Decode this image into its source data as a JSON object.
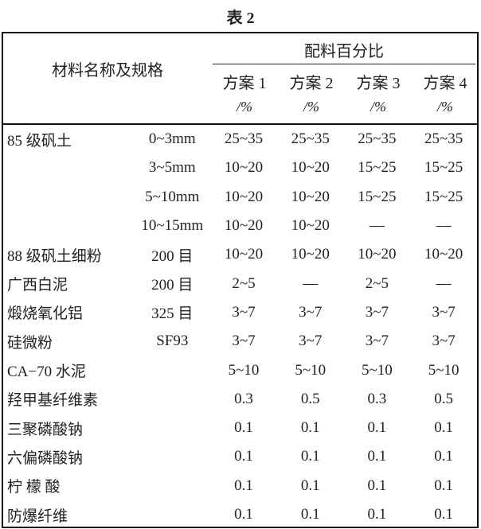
{
  "caption": "表 2",
  "header": {
    "name_spec": "材料名称及规格",
    "group": "配料百分比",
    "plans": [
      "方案 1",
      "方案 2",
      "方案 3",
      "方案 4"
    ],
    "unit": "/%"
  },
  "rows": [
    {
      "name": "85 级矾土",
      "spec": "0~3mm",
      "values": [
        "25~35",
        "25~35",
        "25~35",
        "25~35"
      ]
    },
    {
      "name": "",
      "spec": "3~5mm",
      "values": [
        "10~20",
        "10~20",
        "15~25",
        "15~25"
      ]
    },
    {
      "name": "",
      "spec": "5~10mm",
      "values": [
        "10~20",
        "10~20",
        "15~25",
        "15~25"
      ]
    },
    {
      "name": "",
      "spec": "10~15mm",
      "values": [
        "10~20",
        "10~20",
        "—",
        "—"
      ]
    },
    {
      "name": "88 级矾土细粉",
      "spec": "200 目",
      "values": [
        "10~20",
        "10~20",
        "10~20",
        "10~20"
      ]
    },
    {
      "name": "广西白泥",
      "spec": "200 目",
      "values": [
        "2~5",
        "—",
        "2~5",
        "—"
      ]
    },
    {
      "name": "煅烧氧化铝",
      "spec": "325 目",
      "values": [
        "3~7",
        "3~7",
        "3~7",
        "3~7"
      ]
    },
    {
      "name": "硅微粉",
      "spec": "SF93",
      "values": [
        "3~7",
        "3~7",
        "3~7",
        "3~7"
      ]
    },
    {
      "name": "CA−70 水泥",
      "spec": "",
      "values": [
        "5~10",
        "5~10",
        "5~10",
        "5~10"
      ]
    },
    {
      "name": "羟甲基纤维素",
      "spec": "",
      "values": [
        "0.3",
        "0.5",
        "0.3",
        "0.5"
      ]
    },
    {
      "name": "三聚磷酸钠",
      "spec": "",
      "values": [
        "0.1",
        "0.1",
        "0.1",
        "0.1"
      ]
    },
    {
      "name": "六偏磷酸钠",
      "spec": "",
      "values": [
        "0.1",
        "0.1",
        "0.1",
        "0.1"
      ]
    },
    {
      "name": "柠 檬 酸",
      "spec": "",
      "values": [
        "0.1",
        "0.1",
        "0.1",
        "0.1"
      ]
    },
    {
      "name": "防爆纤维",
      "spec": "",
      "values": [
        "0.1",
        "0.1",
        "0.1",
        "0.1"
      ]
    }
  ]
}
